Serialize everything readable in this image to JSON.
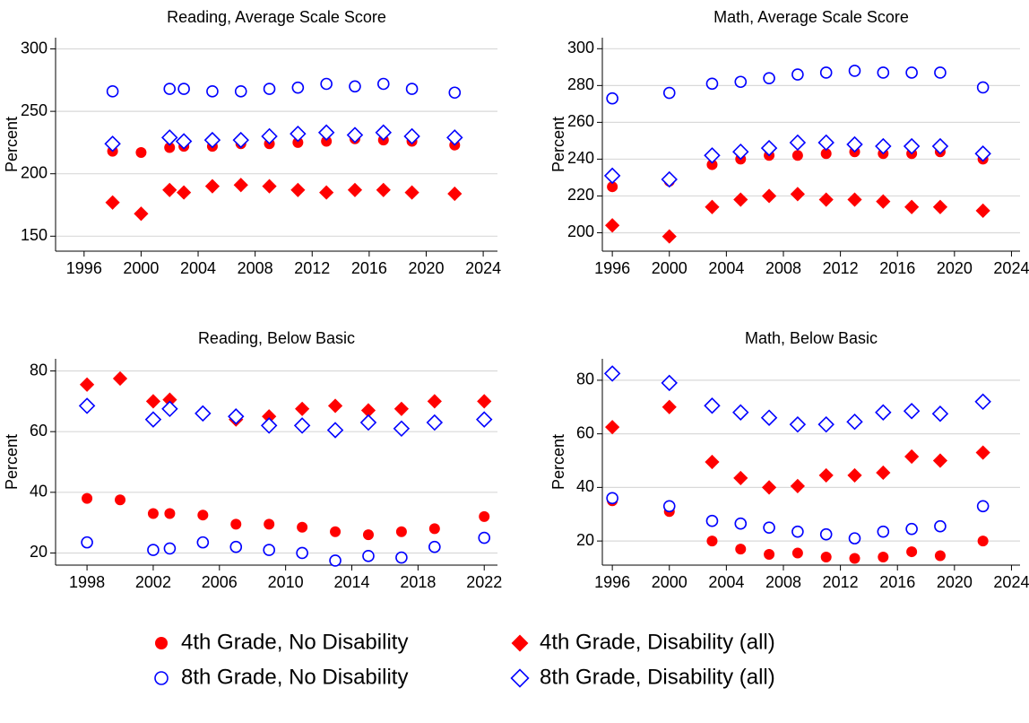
{
  "chart_data": [
    {
      "type": "scatter",
      "title": "Reading, Average Scale Score",
      "ylabel": "Percent",
      "x": [
        1998,
        2000,
        2002,
        2003,
        2005,
        2007,
        2009,
        2011,
        2013,
        2015,
        2017,
        2019,
        2022
      ],
      "xlim": [
        1994,
        2025
      ],
      "xticks": [
        1996,
        2000,
        2004,
        2008,
        2012,
        2016,
        2020,
        2024
      ],
      "ylim": [
        138,
        309
      ],
      "yticks": [
        150,
        200,
        250,
        300
      ],
      "grid": true,
      "series": [
        {
          "name": "4th Grade, No Disability",
          "color": "#ff0000",
          "marker": "circle",
          "filled": true,
          "values": [
            218,
            217,
            221,
            222,
            222,
            224,
            224,
            225,
            226,
            228,
            227,
            226,
            223
          ]
        },
        {
          "name": "4th Grade, Disability (all)",
          "color": "#ff0000",
          "marker": "diamond",
          "filled": true,
          "values": [
            177,
            168,
            187,
            185,
            190,
            191,
            190,
            187,
            185,
            187,
            187,
            185,
            184
          ]
        },
        {
          "name": "8th Grade, No Disability",
          "color": "#0000ff",
          "marker": "circle",
          "filled": false,
          "values": [
            266,
            null,
            268,
            268,
            266,
            266,
            268,
            269,
            272,
            270,
            272,
            268,
            265
          ]
        },
        {
          "name": "8th Grade, Disability (all)",
          "color": "#0000ff",
          "marker": "diamond",
          "filled": false,
          "values": [
            224,
            null,
            229,
            226,
            227,
            227,
            230,
            232,
            233,
            231,
            233,
            230,
            229
          ]
        }
      ]
    },
    {
      "type": "scatter",
      "title": "Math, Average Scale Score",
      "ylabel": "Percent",
      "x": [
        1996,
        2000,
        2003,
        2005,
        2007,
        2009,
        2011,
        2013,
        2015,
        2017,
        2019,
        2022
      ],
      "xlim": [
        1995.3,
        2024.6
      ],
      "xticks": [
        1996,
        2000,
        2004,
        2008,
        2012,
        2016,
        2020,
        2024
      ],
      "ylim": [
        190,
        306
      ],
      "yticks": [
        200,
        220,
        240,
        260,
        280,
        300
      ],
      "grid": true,
      "series": [
        {
          "name": "4th Grade, No Disability",
          "color": "#ff0000",
          "marker": "circle",
          "filled": true,
          "values": [
            225,
            228,
            237,
            240,
            242,
            242,
            243,
            244,
            243,
            243,
            244,
            240
          ]
        },
        {
          "name": "4th Grade, Disability (all)",
          "color": "#ff0000",
          "marker": "diamond",
          "filled": true,
          "values": [
            204,
            198,
            214,
            218,
            220,
            221,
            218,
            218,
            217,
            214,
            214,
            212
          ]
        },
        {
          "name": "8th Grade, No Disability",
          "color": "#0000ff",
          "marker": "circle",
          "filled": false,
          "values": [
            273,
            276,
            281,
            282,
            284,
            286,
            287,
            288,
            287,
            287,
            287,
            279
          ]
        },
        {
          "name": "8th Grade, Disability (all)",
          "color": "#0000ff",
          "marker": "diamond",
          "filled": false,
          "values": [
            231,
            229,
            242,
            244,
            246,
            249,
            249,
            248,
            247,
            247,
            247,
            243
          ]
        }
      ]
    },
    {
      "type": "scatter",
      "title": "Reading, Below Basic",
      "ylabel": "Percent",
      "x": [
        1998,
        2000,
        2002,
        2003,
        2005,
        2007,
        2009,
        2011,
        2013,
        2015,
        2017,
        2019,
        2022
      ],
      "xlim": [
        1996.1,
        2022.8
      ],
      "xticks": [
        1998,
        2002,
        2006,
        2010,
        2014,
        2018,
        2022
      ],
      "ylim": [
        16,
        84
      ],
      "yticks": [
        20,
        40,
        60,
        80
      ],
      "grid": true,
      "series": [
        {
          "name": "4th Grade, No Disability",
          "color": "#ff0000",
          "marker": "circle",
          "filled": true,
          "values": [
            38,
            37.5,
            33,
            33,
            32.5,
            29.5,
            29.5,
            28.5,
            27,
            26,
            27,
            28,
            32
          ]
        },
        {
          "name": "4th Grade, Disability (all)",
          "color": "#ff0000",
          "marker": "diamond",
          "filled": true,
          "values": [
            75.5,
            77.5,
            70,
            70.5,
            66,
            64,
            65,
            67.5,
            68.5,
            67,
            67.5,
            70,
            70
          ]
        },
        {
          "name": "8th Grade, No Disability",
          "color": "#0000ff",
          "marker": "circle",
          "filled": false,
          "values": [
            23.5,
            null,
            21,
            21.5,
            23.5,
            22,
            21,
            20,
            17.5,
            19,
            18.5,
            22,
            25
          ]
        },
        {
          "name": "8th Grade, Disability (all)",
          "color": "#0000ff",
          "marker": "diamond",
          "filled": false,
          "values": [
            68.5,
            null,
            64,
            67.5,
            66,
            65,
            62,
            62,
            60.5,
            63,
            61,
            63,
            64
          ]
        }
      ]
    },
    {
      "type": "scatter",
      "title": "Math, Below Basic",
      "ylabel": "Percent",
      "x": [
        1996,
        2000,
        2003,
        2005,
        2007,
        2009,
        2011,
        2013,
        2015,
        2017,
        2019,
        2022
      ],
      "xlim": [
        1995.3,
        2024.6
      ],
      "xticks": [
        1996,
        2000,
        2004,
        2008,
        2012,
        2016,
        2020,
        2024
      ],
      "ylim": [
        11,
        88
      ],
      "yticks": [
        20,
        40,
        60,
        80
      ],
      "grid": true,
      "series": [
        {
          "name": "4th Grade, No Disability",
          "color": "#ff0000",
          "marker": "circle",
          "filled": true,
          "values": [
            35,
            31,
            20,
            17,
            15,
            15.5,
            14,
            13.5,
            14,
            16,
            14.5,
            20
          ]
        },
        {
          "name": "4th Grade, Disability (all)",
          "color": "#ff0000",
          "marker": "diamond",
          "filled": true,
          "values": [
            62.5,
            70,
            49.5,
            43.5,
            40,
            40.5,
            44.5,
            44.5,
            45.5,
            51.5,
            50,
            53
          ]
        },
        {
          "name": "8th Grade, No Disability",
          "color": "#0000ff",
          "marker": "circle",
          "filled": false,
          "values": [
            36,
            33,
            27.5,
            26.5,
            25,
            23.5,
            22.5,
            21,
            23.5,
            24.5,
            25.5,
            33
          ]
        },
        {
          "name": "8th Grade, Disability (all)",
          "color": "#0000ff",
          "marker": "diamond",
          "filled": false,
          "values": [
            82.5,
            79,
            70.5,
            68,
            66,
            63.5,
            63.5,
            64.5,
            68,
            68.5,
            67.5,
            72
          ]
        }
      ]
    }
  ]
}
